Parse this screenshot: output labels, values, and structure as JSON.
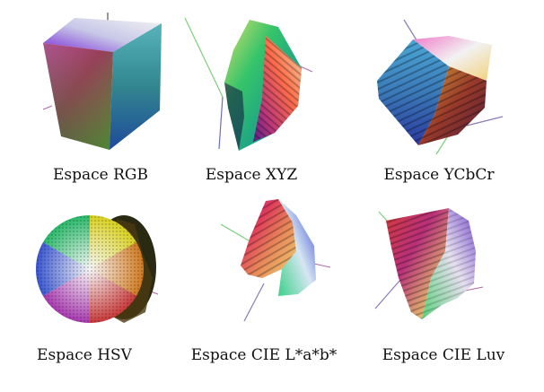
{
  "figures": [
    {
      "key": "rgb",
      "label": "Espace RGB"
    },
    {
      "key": "xyz",
      "label": "Espace XYZ"
    },
    {
      "key": "ycbcr",
      "label": "Espace YCbCr"
    },
    {
      "key": "hsv",
      "label": "Espace HSV"
    },
    {
      "key": "lab",
      "label": "Espace CIE L*a*b*"
    },
    {
      "key": "luv",
      "label": "Espace CIE Luv"
    }
  ]
}
